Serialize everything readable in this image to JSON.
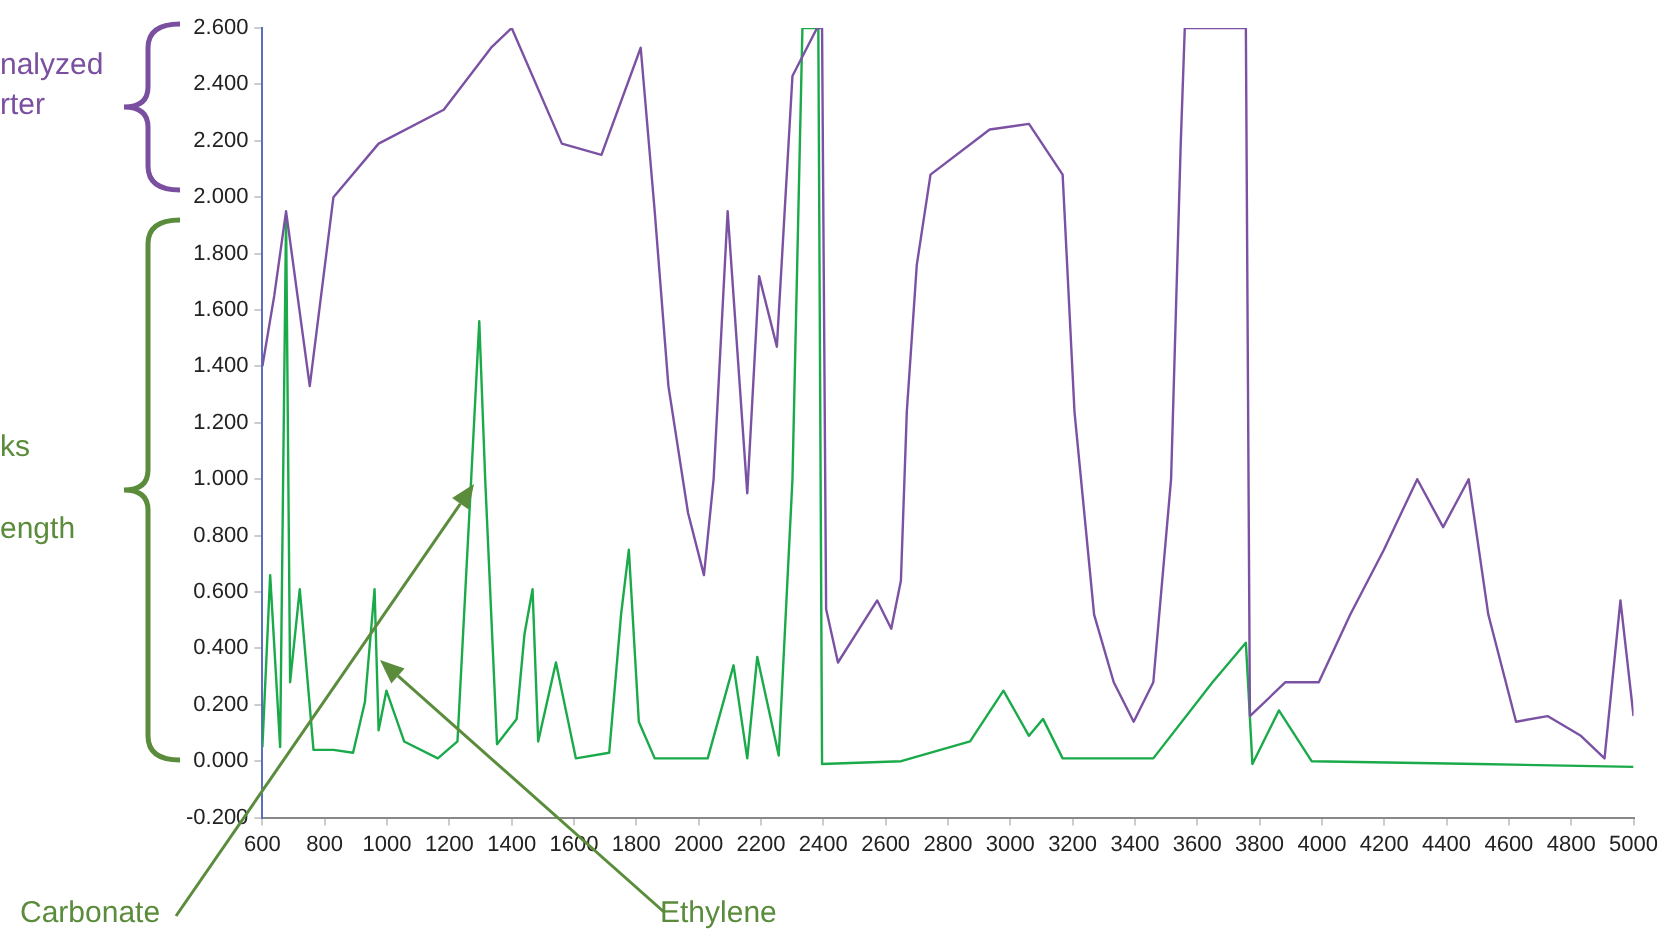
{
  "chart_data": {
    "type": "line",
    "marker": "none",
    "grid": false,
    "legend": false,
    "xlim": [
      600,
      5000
    ],
    "xticks": [
      600,
      800,
      1000,
      1200,
      1400,
      1600,
      1800,
      2000,
      2200,
      2400,
      2600,
      2800,
      3000,
      3200,
      3400,
      3600,
      3800,
      4000,
      4200,
      4400,
      4600,
      4800,
      5000
    ],
    "ylim": [
      -0.2,
      2.6
    ],
    "yticks": [
      {
        "value": -0.2,
        "label": "-0.200"
      },
      {
        "value": 0,
        "label": "0.000"
      },
      {
        "value": 0.2,
        "label": "0.200"
      },
      {
        "value": 0.4,
        "label": "0.400"
      },
      {
        "value": 0.6,
        "label": "0.600"
      },
      {
        "value": 0.8,
        "label": "0.800"
      },
      {
        "value": 1,
        "label": "1.000"
      },
      {
        "value": 1.2,
        "label": "1.200"
      },
      {
        "value": 1.4,
        "label": "1.400"
      },
      {
        "value": 1.6,
        "label": "1.600"
      },
      {
        "value": 1.8,
        "label": "1.800"
      },
      {
        "value": 2,
        "label": "2.000"
      },
      {
        "value": 2.2,
        "label": "2.200"
      },
      {
        "value": 2.4,
        "label": "2.400"
      },
      {
        "value": 2.6,
        "label": "2.600"
      }
    ],
    "series": [
      {
        "color": "#7b52a3",
        "x": [
          600,
          638,
          676,
          752,
          828,
          973,
          1182,
          1334,
          1400,
          1561,
          1688,
          1814,
          1859,
          1903,
          1966,
          2017,
          2048,
          2093,
          2156,
          2194,
          2251,
          2301,
          2380,
          2396,
          2409,
          2447,
          2573,
          2618,
          2649,
          2668,
          2700,
          2744,
          2934,
          3060,
          3168,
          3206,
          3269,
          3332,
          3396,
          3459,
          3516,
          3547,
          3560,
          3674,
          3756,
          3769,
          3883,
          3990,
          4091,
          4199,
          4306,
          4389,
          4471,
          4534,
          4623,
          4724,
          4831,
          4907,
          4958,
          5000
        ],
        "values": [
          1.4,
          1.65,
          1.95,
          1.33,
          2.0,
          2.19,
          2.31,
          2.53,
          2.6,
          2.19,
          2.15,
          2.53,
          1.95,
          1.33,
          0.88,
          0.66,
          1.0,
          1.95,
          0.95,
          1.72,
          1.47,
          2.43,
          2.6,
          2.6,
          0.54,
          0.35,
          0.57,
          0.47,
          0.64,
          1.24,
          1.76,
          2.08,
          2.24,
          2.26,
          2.08,
          1.24,
          0.52,
          0.28,
          0.14,
          0.28,
          1.0,
          2.19,
          2.6,
          2.6,
          2.6,
          0.16,
          0.28,
          0.28,
          0.52,
          0.75,
          1.0,
          0.83,
          1.0,
          0.52,
          0.14,
          0.16,
          0.09,
          0.01,
          0.57,
          0.16
        ]
      },
      {
        "color": "#1aaa4a",
        "x": [
          600,
          625,
          657,
          676,
          689,
          720,
          764,
          828,
          891,
          929,
          960,
          973,
          998,
          1055,
          1163,
          1226,
          1270,
          1296,
          1315,
          1353,
          1416,
          1441,
          1467,
          1485,
          1542,
          1606,
          1713,
          1751,
          1776,
          1808,
          1859,
          2029,
          2112,
          2156,
          2188,
          2257,
          2301,
          2333,
          2384,
          2396,
          2650,
          2871,
          2978,
          3060,
          3105,
          3168,
          3459,
          3649,
          3756,
          3777,
          3862,
          3967,
          4500,
          5000
        ],
        "values": [
          0.05,
          0.66,
          0.05,
          1.93,
          0.28,
          0.61,
          0.04,
          0.04,
          0.03,
          0.21,
          0.61,
          0.11,
          0.25,
          0.07,
          0.01,
          0.07,
          1.0,
          1.56,
          1.0,
          0.06,
          0.15,
          0.45,
          0.61,
          0.07,
          0.35,
          0.01,
          0.03,
          0.52,
          0.75,
          0.14,
          0.01,
          0.01,
          0.34,
          0.01,
          0.37,
          0.02,
          1.0,
          2.6,
          2.6,
          -0.01,
          0.0,
          0.07,
          0.25,
          0.09,
          0.15,
          0.01,
          0.01,
          0.28,
          0.42,
          -0.01,
          0.18,
          0.0,
          -0.01,
          -0.02
        ]
      }
    ],
    "annotations": [
      "Carbonate",
      "Ethylene",
      "nalyzed",
      "rter",
      "ks",
      "ength"
    ]
  }
}
